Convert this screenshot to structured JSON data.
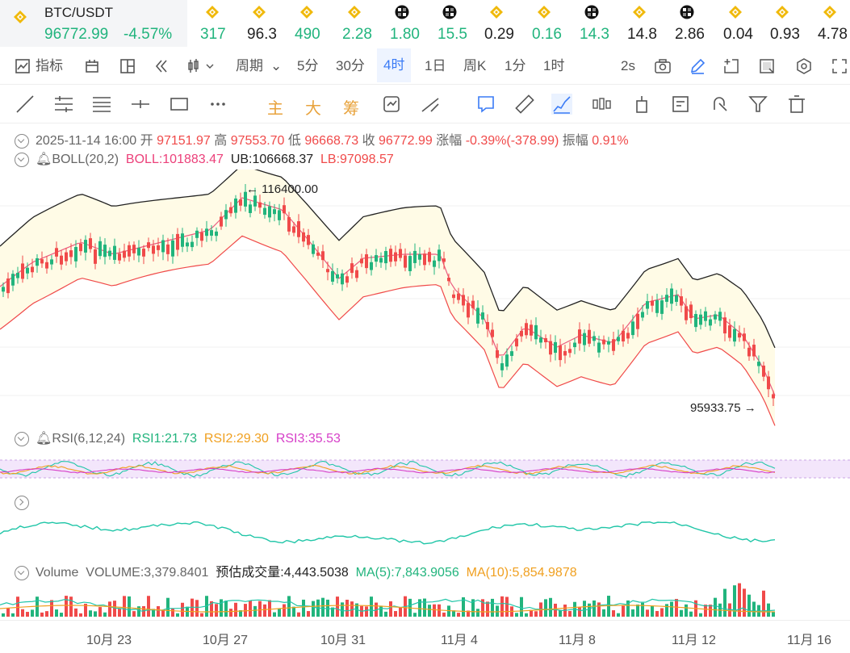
{
  "header": {
    "symbol": "BTC/USDT",
    "price": "96772.99",
    "change": "-4.57%",
    "tickers": [
      {
        "icon": "binance-coin-icon",
        "value": "317",
        "color": "#21b47d"
      },
      {
        "icon": "binance-coin-icon",
        "value": "96.3",
        "color": "#222222"
      },
      {
        "icon": "binance-coin-icon",
        "value": "490",
        "color": "#21b47d"
      },
      {
        "icon": "binance-coin-icon",
        "value": "2.28",
        "color": "#21b47d"
      },
      {
        "icon": "checker-coin-icon",
        "value": "1.80",
        "color": "#21b47d"
      },
      {
        "icon": "checker-coin-icon",
        "value": "15.5",
        "color": "#21b47d"
      },
      {
        "icon": "binance-coin-icon",
        "value": "0.29",
        "color": "#222222"
      },
      {
        "icon": "binance-coin-icon",
        "value": "0.16",
        "color": "#21b47d"
      },
      {
        "icon": "checker-coin-icon",
        "value": "14.3",
        "color": "#21b47d"
      },
      {
        "icon": "binance-coin-icon",
        "value": "14.8",
        "color": "#222222"
      },
      {
        "icon": "checker-coin-icon",
        "value": "2.86",
        "color": "#222222"
      },
      {
        "icon": "binance-coin-icon",
        "value": "0.04",
        "color": "#222222"
      },
      {
        "icon": "binance-coin-icon",
        "value": "0.93",
        "color": "#222222"
      },
      {
        "icon": "binance-coin-icon",
        "value": "4.78",
        "color": "#222222"
      }
    ]
  },
  "toolbar": {
    "indicator": "指标",
    "period": "周期",
    "intervals": [
      "5分",
      "30分",
      "4时",
      "1日",
      "周K",
      "1分",
      "1时"
    ],
    "active_interval": "4时",
    "refresh": "2s"
  },
  "drawbar": {
    "main": "主",
    "big": "大",
    "chip": "筹"
  },
  "ohlc": {
    "date": "2025-11-14 16:00",
    "open_label": "开",
    "open": "97151.97",
    "high_label": "高",
    "high": "97553.70",
    "low_label": "低",
    "low": "96668.73",
    "close_label": "收",
    "close": "96772.99",
    "chg_label": "涨幅",
    "chg": "-0.39%(-378.99)",
    "amp_label": "振幅",
    "amp": "0.91%"
  },
  "boll": {
    "name": "BOLL(20,2)",
    "boll": "BOLL:101883.47",
    "ub": "UB:106668.37",
    "lb": "LB:97098.57"
  },
  "price_annotations": {
    "high": "116400.00",
    "low": "95933.75"
  },
  "rsi": {
    "name": "RSI(6,12,24)",
    "rsi1": "RSI1:21.73",
    "rsi2": "RSI2:29.30",
    "rsi3": "RSI3:35.53"
  },
  "volume": {
    "name": "Volume",
    "vol": "VOLUME:3,379.8401",
    "est": "预估成交量:4,443.5038",
    "ma5": "MA(5):7,843.9056",
    "ma10": "MA(10):5,854.9878"
  },
  "x_axis": [
    "10月 23",
    "10月 27",
    "10月 31",
    "11月 4",
    "11月 8",
    "11月 12",
    "11月 16"
  ],
  "colors": {
    "up": "#21b47d",
    "down": "#f04a4a",
    "accent": "#3a7bf6",
    "boll_fill": "#fffbe6"
  }
}
